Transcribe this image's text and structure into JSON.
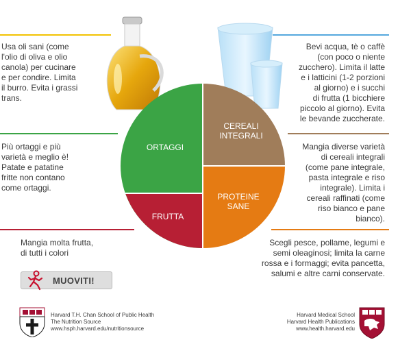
{
  "plate": {
    "vegetables": "ORTAGGI",
    "grains_1": "CEREALI",
    "grains_2": "INTEGRALI",
    "protein_1": "PROTEINE",
    "protein_2": "SANE",
    "fruit": "FRUTTA",
    "colors": {
      "vegetables": "#3ba445",
      "grains": "#a07d5a",
      "protein": "#e57b13",
      "fruit": "#b71f34"
    }
  },
  "oils": {
    "lines": [
      "Usa oli sani (come",
      "l'olio di oliva e olio",
      "canola) per cucinare",
      "e per condire. Limita",
      "il burro. Evita i grassi",
      "trans."
    ]
  },
  "water": {
    "lines": [
      "Bevi acqua, tè o caffè",
      "(con poco o niente",
      "zucchero). Limita il latte",
      "e i latticini (1-2 porzioni",
      "al giorno) e i succhi",
      "di frutta (1 bicchiere",
      "piccolo al giorno). Evita",
      "le bevande zuccherate."
    ]
  },
  "vegetables": {
    "lines": [
      "Più ortaggi e più",
      "varietà e meglio è!",
      "Patate e patatine",
      "fritte non contano",
      "come ortaggi."
    ]
  },
  "grains": {
    "lines": [
      "Mangia diverse varietà",
      "di cereali integrali",
      "(come pane integrale,",
      "pasta integrale e riso",
      "integrale). Limita i",
      "cereali raffinati (come",
      "riso bianco e pane",
      "bianco)."
    ]
  },
  "fruit": {
    "lines": [
      "Mangia molta frutta,",
      "di tutti i colori"
    ]
  },
  "protein": {
    "lines": [
      "Scegli pesce, pollame, legumi e",
      "semi oleaginosi; limita la carne",
      "rossa e i formaggi; evita pancetta,",
      "salumi e altre carni conservate."
    ]
  },
  "move": {
    "label": "MUOVITI!",
    "icon": "running-person-icon"
  },
  "footer_left": {
    "lines": [
      "Harvard T.H. Chan School of Public Health",
      "The Nutrition Source",
      "www.hsph.harvard.edu/nutritionsource"
    ]
  },
  "footer_right": {
    "lines": [
      "Harvard Medical School",
      "Harvard Health Publications",
      "www.health.harvard.edu"
    ]
  }
}
